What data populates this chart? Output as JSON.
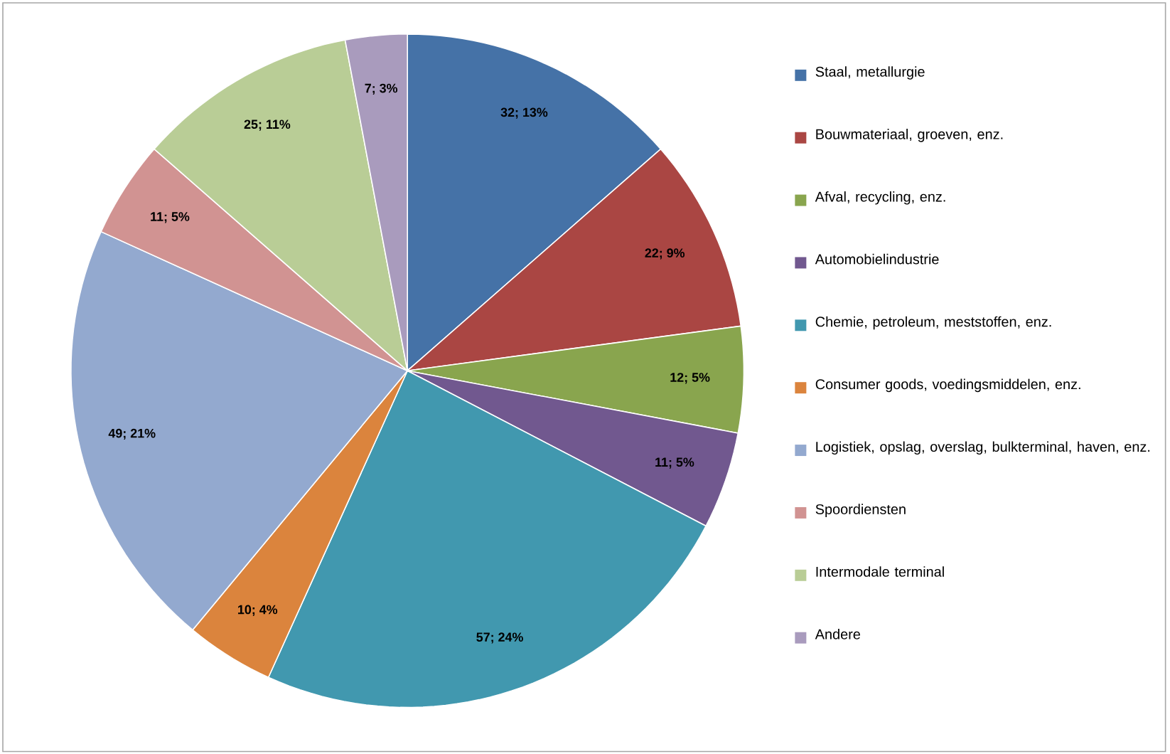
{
  "chart_data": {
    "type": "pie",
    "categories": [
      "Staal, metallurgie",
      "Bouwmateriaal, groeven, enz.",
      "Afval, recycling, enz.",
      "Automobielindustrie",
      "Chemie, petroleum, meststoffen, enz.",
      "Consumer goods, voedingsmiddelen, enz.",
      "Logistiek, opslag, overslag, bulkterminal, haven, enz.",
      "Spoordiensten",
      "Intermodale terminal",
      "Andere"
    ],
    "values": [
      32,
      22,
      12,
      11,
      57,
      10,
      49,
      11,
      25,
      7
    ],
    "value_labels": [
      "32; 13%",
      "22; 9%",
      "12; 5%",
      "11; 5%",
      "57; 24%",
      "10; 4%",
      "49; 21%",
      "11; 5%",
      "25; 11%",
      "7; 3%"
    ],
    "colors": [
      "#4572a7",
      "#aa4643",
      "#89a54e",
      "#71588f",
      "#4198af",
      "#db843d",
      "#93a9cf",
      "#d19392",
      "#b9cd96",
      "#a99bbd"
    ],
    "legend": "right"
  }
}
